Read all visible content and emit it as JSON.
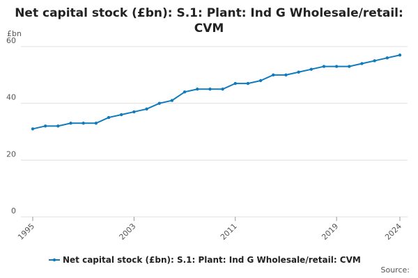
{
  "chart_data": {
    "type": "line",
    "title": "Net capital stock (£bn): S.1: Plant: Ind G Wholesale/retail: CVM",
    "y_label": "£bn",
    "source": "Source:",
    "x": [
      1995,
      1996,
      1997,
      1998,
      1999,
      2000,
      2001,
      2002,
      2003,
      2004,
      2005,
      2006,
      2007,
      2008,
      2009,
      2010,
      2011,
      2012,
      2013,
      2014,
      2015,
      2016,
      2017,
      2018,
      2019,
      2020,
      2021,
      2022,
      2023,
      2024
    ],
    "series": [
      {
        "name": "Net capital stock (£bn): S.1: Plant: Ind G Wholesale/retail: CVM",
        "color": "#0f7bbd",
        "values": [
          31,
          32,
          32,
          33,
          33,
          33,
          35,
          36,
          37,
          38,
          40,
          41,
          44,
          45,
          45,
          45,
          47,
          47,
          48,
          50,
          50,
          51,
          52,
          53,
          53,
          53,
          54,
          55,
          56,
          57
        ]
      }
    ],
    "xlim": [
      1995,
      2024
    ],
    "xticks": [
      1995,
      2003,
      2011,
      2019,
      2024
    ],
    "ylim": [
      0,
      60
    ],
    "yticks": [
      0,
      20,
      40,
      60
    ],
    "grid": true
  }
}
